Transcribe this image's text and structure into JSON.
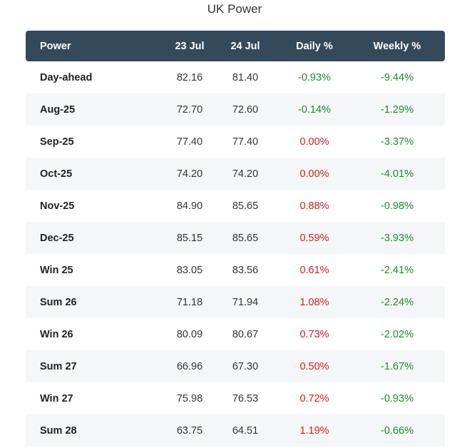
{
  "title": "UK Power",
  "headers": {
    "name": "Power",
    "day1": "23 Jul",
    "day2": "24 Jul",
    "daily": "Daily %",
    "weekly": "Weekly %"
  },
  "colors": {
    "header_bg": "#34495a",
    "positive_change": "#d0201c",
    "negative_change": "#1e8a2a",
    "stripe": "#f5f6f8"
  },
  "rows": [
    {
      "name": "Day-ahead",
      "day1": "82.16",
      "day2": "81.40",
      "daily": "-0.93%",
      "weekly": "-9.44%"
    },
    {
      "name": "Aug-25",
      "day1": "72.70",
      "day2": "72.60",
      "daily": "-0.14%",
      "weekly": "-1.29%"
    },
    {
      "name": "Sep-25",
      "day1": "77.40",
      "day2": "77.40",
      "daily": "0.00%",
      "weekly": "-3.37%"
    },
    {
      "name": "Oct-25",
      "day1": "74.20",
      "day2": "74.20",
      "daily": "0.00%",
      "weekly": "-4.01%"
    },
    {
      "name": "Nov-25",
      "day1": "84.90",
      "day2": "85.65",
      "daily": "0.88%",
      "weekly": "-0.98%"
    },
    {
      "name": "Dec-25",
      "day1": "85.15",
      "day2": "85.65",
      "daily": "0.59%",
      "weekly": "-3.93%"
    },
    {
      "name": "Win 25",
      "day1": "83.05",
      "day2": "83.56",
      "daily": "0.61%",
      "weekly": "-2.41%"
    },
    {
      "name": "Sum 26",
      "day1": "71.18",
      "day2": "71.94",
      "daily": "1.08%",
      "weekly": "-2.24%"
    },
    {
      "name": "Win 26",
      "day1": "80.09",
      "day2": "80.67",
      "daily": "0.73%",
      "weekly": "-2.02%"
    },
    {
      "name": "Sum 27",
      "day1": "66.96",
      "day2": "67.30",
      "daily": "0.50%",
      "weekly": "-1.67%"
    },
    {
      "name": "Win 27",
      "day1": "75.98",
      "day2": "76.53",
      "daily": "0.72%",
      "weekly": "-0.93%"
    },
    {
      "name": "Sum 28",
      "day1": "63.75",
      "day2": "64.51",
      "daily": "1.19%",
      "weekly": "-0.66%"
    }
  ]
}
